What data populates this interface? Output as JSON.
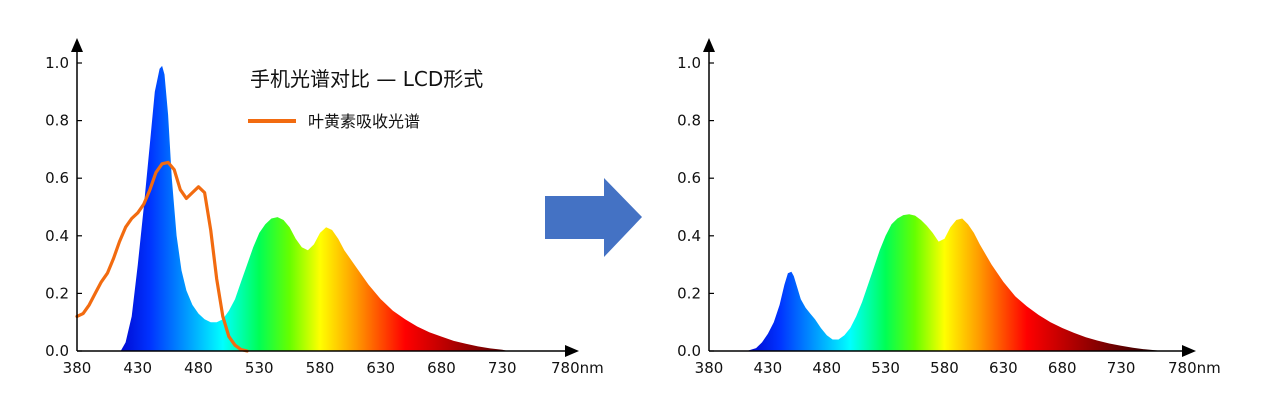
{
  "colors": {
    "axis": "#000000",
    "absorption_line": "#f26b10",
    "arrow_fill": "#4472c4",
    "spectrum_stops": [
      {
        "nm": 410,
        "color": "#0000c8"
      },
      {
        "nm": 440,
        "color": "#0033ff"
      },
      {
        "nm": 470,
        "color": "#0099ff"
      },
      {
        "nm": 500,
        "color": "#00ffff"
      },
      {
        "nm": 530,
        "color": "#00ff55"
      },
      {
        "nm": 555,
        "color": "#66ff00"
      },
      {
        "nm": 580,
        "color": "#ffff00"
      },
      {
        "nm": 610,
        "color": "#ff9900"
      },
      {
        "nm": 650,
        "color": "#ff0000"
      },
      {
        "nm": 700,
        "color": "#990000"
      },
      {
        "nm": 760,
        "color": "#2a0000"
      }
    ]
  },
  "arrow": {
    "icon": "right-arrow-icon"
  },
  "chart_data": [
    {
      "type": "area",
      "title": "手机光谱对比 — LCD形式",
      "xlabel": "",
      "ylabel": "",
      "x_unit": "nm",
      "xlim": [
        380,
        780
      ],
      "ylim": [
        0,
        1.0
      ],
      "x_ticks": [
        "380",
        "430",
        "480",
        "530",
        "580",
        "630",
        "680",
        "730",
        "780nm"
      ],
      "y_ticks": [
        "0.0",
        "0.2",
        "0.4",
        "0.6",
        "0.8",
        "1.0"
      ],
      "legend": {
        "position": "top-right",
        "entries": [
          "叶黄素吸收光谱"
        ]
      },
      "series": [
        {
          "kind": "spectrum-area",
          "x": [
            416,
            420,
            425,
            430,
            435,
            440,
            444,
            448,
            450,
            452,
            455,
            458,
            462,
            466,
            470,
            475,
            480,
            485,
            490,
            495,
            500,
            505,
            510,
            515,
            520,
            525,
            530,
            535,
            540,
            545,
            550,
            555,
            560,
            565,
            570,
            575,
            580,
            585,
            590,
            595,
            600,
            610,
            620,
            630,
            640,
            650,
            660,
            670,
            680,
            690,
            700,
            710,
            720,
            730,
            735
          ],
          "y": [
            0.0,
            0.03,
            0.12,
            0.3,
            0.5,
            0.72,
            0.9,
            0.98,
            0.99,
            0.96,
            0.82,
            0.6,
            0.4,
            0.28,
            0.21,
            0.16,
            0.13,
            0.11,
            0.1,
            0.1,
            0.11,
            0.14,
            0.18,
            0.24,
            0.3,
            0.36,
            0.41,
            0.44,
            0.46,
            0.465,
            0.455,
            0.43,
            0.39,
            0.36,
            0.35,
            0.37,
            0.41,
            0.43,
            0.42,
            0.39,
            0.35,
            0.29,
            0.23,
            0.18,
            0.14,
            0.11,
            0.085,
            0.065,
            0.05,
            0.035,
            0.025,
            0.016,
            0.009,
            0.004,
            0.0
          ]
        },
        {
          "name": "叶黄素吸收光谱",
          "kind": "line",
          "x": [
            380,
            385,
            390,
            395,
            400,
            405,
            410,
            415,
            420,
            425,
            430,
            435,
            440,
            445,
            450,
            455,
            460,
            465,
            470,
            475,
            480,
            485,
            490,
            495,
            500,
            505,
            510,
            515,
            520
          ],
          "y": [
            0.12,
            0.13,
            0.16,
            0.2,
            0.24,
            0.27,
            0.32,
            0.38,
            0.43,
            0.46,
            0.48,
            0.51,
            0.56,
            0.62,
            0.65,
            0.655,
            0.63,
            0.56,
            0.53,
            0.55,
            0.57,
            0.55,
            0.42,
            0.25,
            0.12,
            0.05,
            0.02,
            0.005,
            0.0
          ]
        }
      ]
    },
    {
      "type": "area",
      "title": "",
      "xlabel": "",
      "ylabel": "",
      "x_unit": "nm",
      "xlim": [
        380,
        780
      ],
      "ylim": [
        0,
        1.0
      ],
      "x_ticks": [
        "380",
        "430",
        "480",
        "530",
        "580",
        "630",
        "680",
        "730",
        "780nm"
      ],
      "y_ticks": [
        "0.0",
        "0.2",
        "0.4",
        "0.6",
        "0.8",
        "1.0"
      ],
      "series": [
        {
          "kind": "spectrum-area",
          "x": [
            412,
            420,
            425,
            430,
            435,
            440,
            444,
            447,
            450,
            452,
            455,
            458,
            462,
            466,
            470,
            475,
            480,
            485,
            490,
            495,
            500,
            505,
            510,
            515,
            520,
            525,
            530,
            535,
            540,
            545,
            550,
            555,
            560,
            565,
            570,
            575,
            580,
            585,
            590,
            595,
            600,
            605,
            610,
            620,
            630,
            640,
            650,
            660,
            670,
            680,
            690,
            700,
            710,
            720,
            730,
            740,
            750,
            760,
            765
          ],
          "y": [
            0.0,
            0.01,
            0.03,
            0.06,
            0.1,
            0.16,
            0.23,
            0.27,
            0.275,
            0.26,
            0.22,
            0.18,
            0.15,
            0.13,
            0.11,
            0.08,
            0.055,
            0.04,
            0.04,
            0.055,
            0.08,
            0.12,
            0.17,
            0.23,
            0.29,
            0.35,
            0.4,
            0.44,
            0.46,
            0.472,
            0.475,
            0.47,
            0.455,
            0.435,
            0.41,
            0.38,
            0.39,
            0.43,
            0.455,
            0.46,
            0.44,
            0.41,
            0.37,
            0.3,
            0.24,
            0.19,
            0.155,
            0.125,
            0.1,
            0.08,
            0.063,
            0.048,
            0.036,
            0.026,
            0.018,
            0.011,
            0.006,
            0.002,
            0.0
          ]
        }
      ]
    }
  ]
}
